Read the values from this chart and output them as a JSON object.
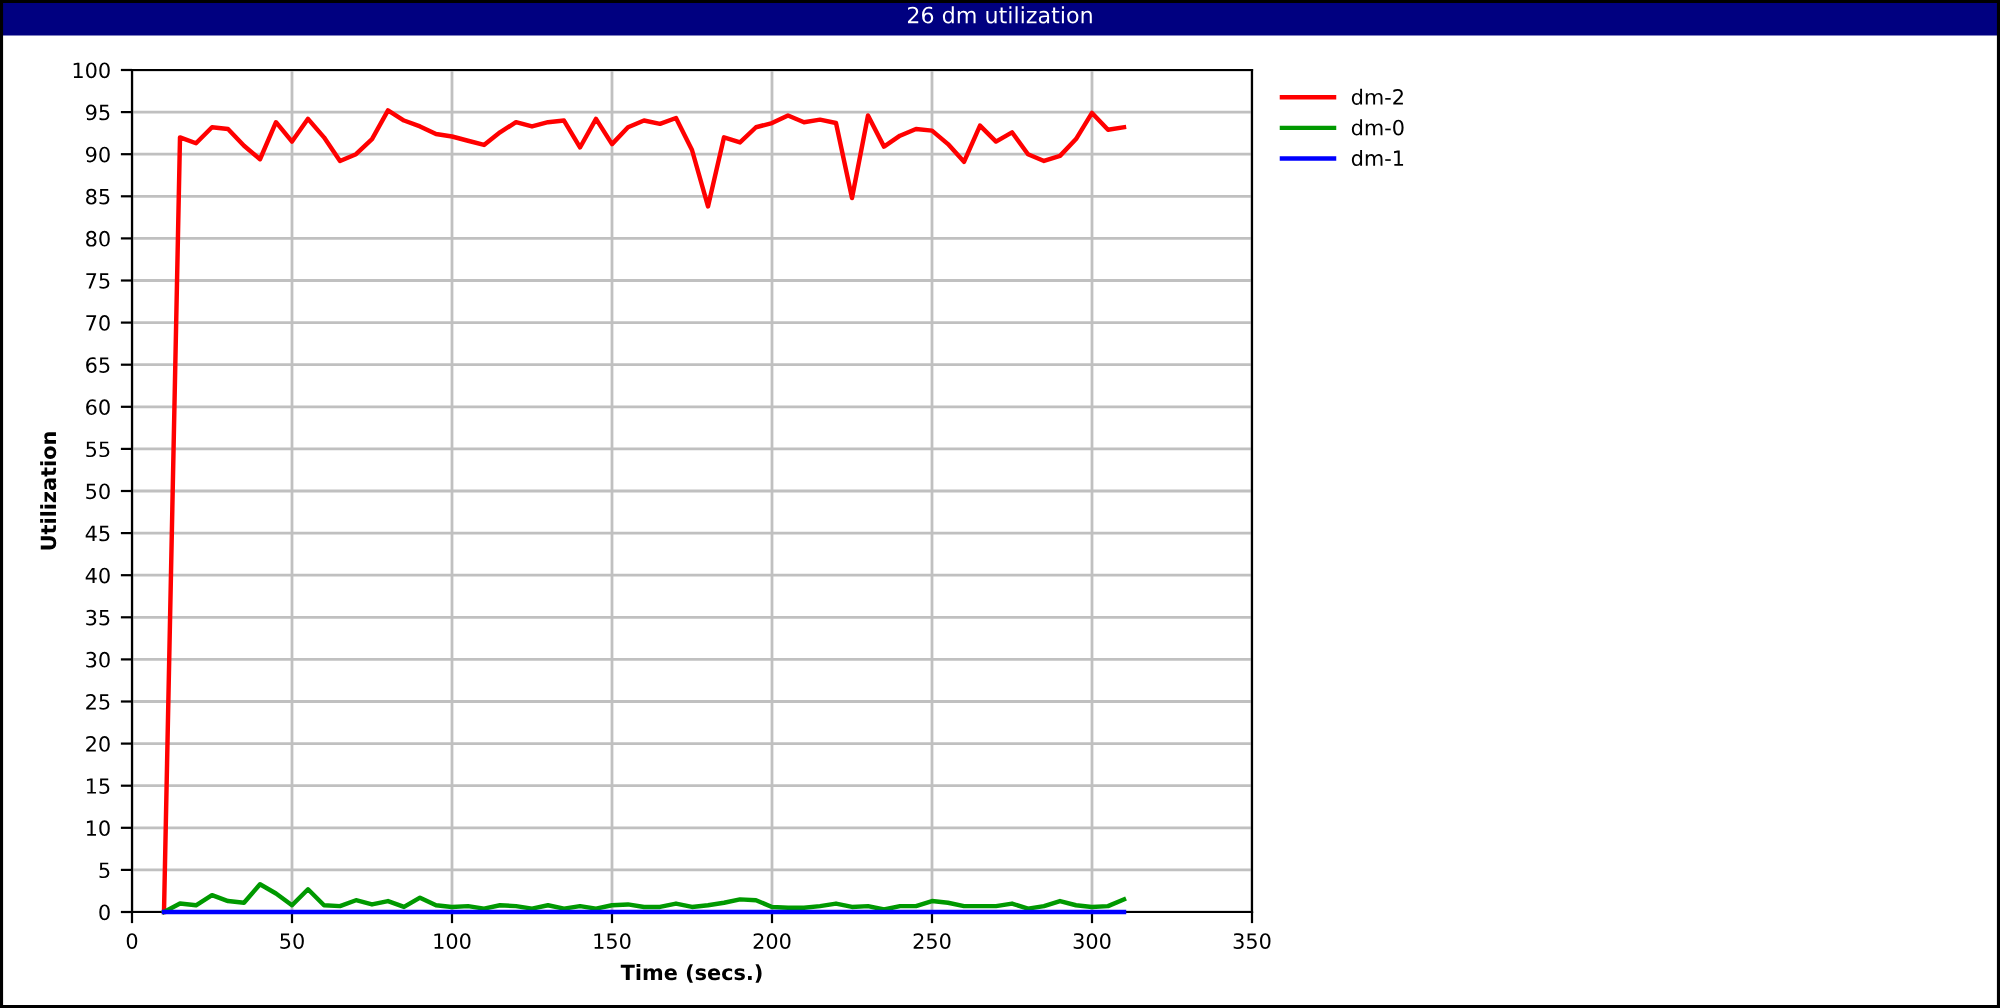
{
  "chart_data": {
    "type": "line",
    "title": "26 dm utilization",
    "xlabel": "Time (secs.)",
    "ylabel": "Utilization",
    "x": [
      10,
      15,
      20,
      25,
      30,
      35,
      40,
      45,
      50,
      55,
      60,
      65,
      70,
      75,
      80,
      85,
      90,
      95,
      100,
      105,
      110,
      115,
      120,
      125,
      130,
      135,
      140,
      145,
      150,
      155,
      160,
      165,
      170,
      175,
      180,
      185,
      190,
      195,
      200,
      205,
      210,
      215,
      220,
      225,
      230,
      235,
      240,
      245,
      250,
      255,
      260,
      265,
      270,
      275,
      280,
      285,
      290,
      295,
      300,
      305,
      310
    ],
    "series": [
      {
        "name": "dm-2",
        "color": "#ff0000",
        "values": [
          0,
          92,
          91.3,
          93.2,
          93,
          91,
          89.4,
          93.8,
          91.5,
          94.2,
          92,
          89.2,
          90,
          91.8,
          95.2,
          94,
          93.3,
          92.4,
          92.1,
          91.6,
          91.1,
          92.6,
          93.8,
          93.3,
          93.8,
          94,
          90.8,
          94.2,
          91.2,
          93.2,
          94,
          93.6,
          94.3,
          90.5,
          83.8,
          92,
          91.4,
          93.2,
          93.7,
          94.6,
          93.8,
          94.1,
          93.7,
          84.8,
          94.6,
          90.9,
          92.2,
          93,
          92.8,
          91.2,
          89.1,
          93.4,
          91.5,
          92.6,
          90,
          89.2,
          89.8,
          91.8,
          94.9,
          92.9,
          93.2
        ]
      },
      {
        "name": "dm-0",
        "color": "#009900",
        "values": [
          0,
          1,
          0.8,
          2,
          1.3,
          1.1,
          3.3,
          2.2,
          0.8,
          2.7,
          0.8,
          0.7,
          1.4,
          0.9,
          1.3,
          0.6,
          1.7,
          0.8,
          0.6,
          0.7,
          0.4,
          0.8,
          0.7,
          0.4,
          0.8,
          0.4,
          0.7,
          0.4,
          0.8,
          0.9,
          0.6,
          0.6,
          1.0,
          0.6,
          0.8,
          1.1,
          1.5,
          1.4,
          0.6,
          0.5,
          0.5,
          0.7,
          1.0,
          0.6,
          0.7,
          0.3,
          0.7,
          0.7,
          1.3,
          1.1,
          0.7,
          0.7,
          0.7,
          1.0,
          0.4,
          0.7,
          1.3,
          0.8,
          0.6,
          0.7,
          1.5
        ]
      },
      {
        "name": "dm-1",
        "color": "#0000ff",
        "x": [
          10,
          310
        ],
        "values": [
          0,
          0
        ]
      }
    ],
    "xlim": [
      0,
      350
    ],
    "xticks": [
      0,
      50,
      100,
      150,
      200,
      250,
      300,
      350
    ],
    "ylim": [
      0,
      100
    ],
    "yticks": [
      0,
      5,
      10,
      15,
      20,
      25,
      30,
      35,
      40,
      45,
      50,
      55,
      60,
      65,
      70,
      75,
      80,
      85,
      90,
      95,
      100
    ],
    "grid": true,
    "legend": "top right",
    "marker": "none",
    "line_style": "solid"
  }
}
